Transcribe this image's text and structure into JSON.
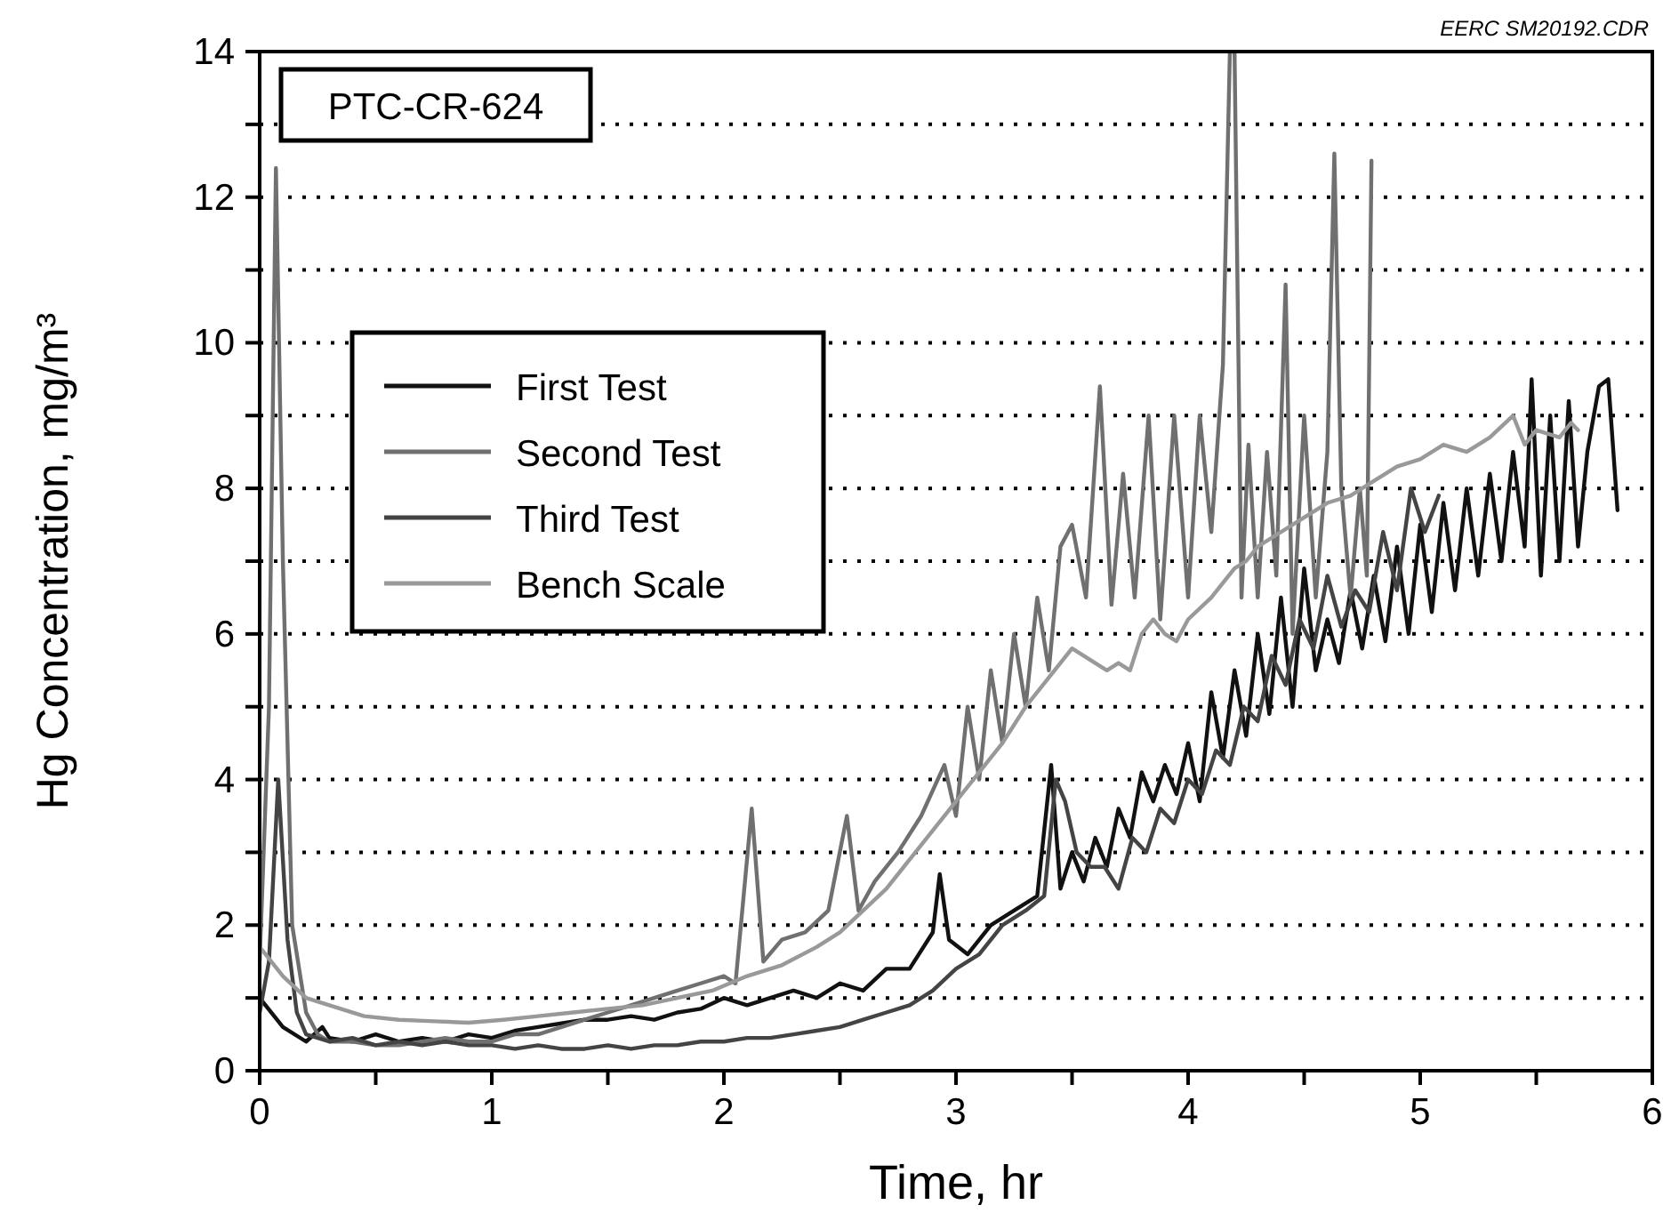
{
  "chart_data": {
    "type": "line",
    "xlabel": "Time, hr",
    "ylabel": "Hg Concentration, mg/m³",
    "annotations": [
      "PTC-CR-624",
      "EERC SM20192.CDR"
    ],
    "xlim": [
      0,
      6
    ],
    "ylim": [
      0,
      14
    ],
    "xticks": [
      0,
      {
        "value": 0.5,
        "label": null
      },
      1,
      {
        "value": 1.5,
        "label": null
      },
      2,
      {
        "value": 2.5,
        "label": null
      },
      3,
      {
        "value": 3.5,
        "label": null
      },
      4,
      {
        "value": 4.5,
        "label": null
      },
      5,
      {
        "value": 5.5,
        "label": null
      },
      6
    ],
    "yticks": [
      0,
      {
        "value": 1,
        "label": null
      },
      2,
      {
        "value": 3,
        "label": null
      },
      4,
      {
        "value": 5,
        "label": null
      },
      6,
      {
        "value": 7,
        "label": null
      },
      8,
      {
        "value": 9,
        "label": null
      },
      10,
      {
        "value": 11,
        "label": null
      },
      12,
      {
        "value": 13,
        "label": null
      },
      14
    ],
    "grid": "y",
    "legend": "left",
    "line_style": "solid",
    "marker": "none",
    "series": [
      {
        "name": "First Test",
        "color": "#111111",
        "x": [
          0,
          0.1,
          0.2,
          0.27,
          0.3,
          0.4,
          0.5,
          0.6,
          0.7,
          0.8,
          0.9,
          1.0,
          1.1,
          1.2,
          1.3,
          1.4,
          1.5,
          1.6,
          1.7,
          1.8,
          1.9,
          2.0,
          2.1,
          2.2,
          2.3,
          2.4,
          2.5,
          2.6,
          2.7,
          2.8,
          2.9,
          2.93,
          2.97,
          3.05,
          3.15,
          3.25,
          3.35,
          3.41,
          3.45,
          3.5,
          3.55,
          3.6,
          3.65,
          3.7,
          3.75,
          3.8,
          3.85,
          3.9,
          3.95,
          4.0,
          4.05,
          4.1,
          4.15,
          4.2,
          4.25,
          4.3,
          4.35,
          4.4,
          4.45,
          4.5,
          4.55,
          4.6,
          4.65,
          4.7,
          4.75,
          4.8,
          4.85,
          4.9,
          4.95,
          5.0,
          5.05,
          5.1,
          5.15,
          5.2,
          5.25,
          5.3,
          5.35,
          5.4,
          5.45,
          5.48,
          5.52,
          5.56,
          5.6,
          5.64,
          5.68,
          5.72,
          5.77,
          5.81,
          5.85
        ],
        "values": [
          1.0,
          0.6,
          0.4,
          0.6,
          0.45,
          0.4,
          0.5,
          0.4,
          0.45,
          0.4,
          0.5,
          0.45,
          0.55,
          0.6,
          0.65,
          0.7,
          0.7,
          0.75,
          0.7,
          0.8,
          0.85,
          1.0,
          0.9,
          1.0,
          1.1,
          1.0,
          1.2,
          1.1,
          1.4,
          1.4,
          1.9,
          2.7,
          1.8,
          1.6,
          2.0,
          2.2,
          2.4,
          4.2,
          2.5,
          3.0,
          2.6,
          3.2,
          2.8,
          3.6,
          3.2,
          4.1,
          3.7,
          4.2,
          3.8,
          4.5,
          3.7,
          5.2,
          4.3,
          5.5,
          4.6,
          6.0,
          4.9,
          6.5,
          5.0,
          6.9,
          5.5,
          6.2,
          5.6,
          6.6,
          5.8,
          6.8,
          5.9,
          7.2,
          6.0,
          7.5,
          6.3,
          7.8,
          6.6,
          8.0,
          6.8,
          8.2,
          7.0,
          8.5,
          7.2,
          9.5,
          6.8,
          9.0,
          7.0,
          9.2,
          7.2,
          8.5,
          9.4,
          9.5,
          7.7
        ]
      },
      {
        "name": "Second Test",
        "color": "#707070",
        "x": [
          0,
          0.04,
          0.07,
          0.1,
          0.14,
          0.2,
          0.25,
          0.3,
          0.4,
          0.5,
          0.6,
          0.7,
          0.8,
          0.9,
          1.0,
          1.1,
          1.2,
          1.3,
          1.4,
          1.5,
          1.6,
          1.7,
          1.8,
          1.9,
          2.0,
          2.05,
          2.12,
          2.17,
          2.25,
          2.35,
          2.45,
          2.53,
          2.58,
          2.65,
          2.75,
          2.85,
          2.95,
          3.0,
          3.05,
          3.1,
          3.15,
          3.2,
          3.25,
          3.3,
          3.35,
          3.4,
          3.45,
          3.5,
          3.56,
          3.62,
          3.67,
          3.72,
          3.77,
          3.83,
          3.88,
          3.94,
          4.0,
          4.05,
          4.1,
          4.15,
          4.18,
          4.2,
          4.23,
          4.26,
          4.3,
          4.34,
          4.38,
          4.42,
          4.45,
          4.5,
          4.55,
          4.6,
          4.63,
          4.66,
          4.7,
          4.74,
          4.77,
          4.79
        ],
        "values": [
          1.5,
          5,
          12.4,
          7,
          2,
          0.8,
          0.5,
          0.4,
          0.4,
          0.35,
          0.35,
          0.4,
          0.45,
          0.4,
          0.4,
          0.5,
          0.5,
          0.6,
          0.7,
          0.8,
          0.9,
          1.0,
          1.1,
          1.2,
          1.3,
          1.2,
          3.6,
          1.5,
          1.8,
          1.9,
          2.2,
          3.5,
          2.2,
          2.6,
          3.0,
          3.5,
          4.2,
          3.5,
          5.0,
          4.0,
          5.5,
          4.5,
          6.0,
          5.0,
          6.5,
          5.5,
          7.2,
          7.5,
          6.5,
          9.4,
          6.4,
          8.2,
          6.5,
          9.0,
          6.2,
          9.0,
          6.5,
          9.0,
          7.4,
          9.7,
          14,
          14,
          6.5,
          8.6,
          6.5,
          8.5,
          6.8,
          10.8,
          6.0,
          9.0,
          6.5,
          8.5,
          12.6,
          8.0,
          6.5,
          8.0,
          6.8,
          12.5
        ]
      },
      {
        "name": "Third Test",
        "color": "#444444",
        "x": [
          0,
          0.04,
          0.08,
          0.12,
          0.16,
          0.2,
          0.3,
          0.4,
          0.5,
          0.6,
          0.7,
          0.8,
          0.9,
          1.0,
          1.1,
          1.2,
          1.3,
          1.4,
          1.5,
          1.6,
          1.7,
          1.8,
          1.9,
          2.0,
          2.1,
          2.2,
          2.3,
          2.4,
          2.5,
          2.6,
          2.7,
          2.8,
          2.9,
          3.0,
          3.1,
          3.2,
          3.3,
          3.38,
          3.43,
          3.47,
          3.52,
          3.58,
          3.64,
          3.7,
          3.76,
          3.82,
          3.88,
          3.94,
          4.0,
          4.06,
          4.12,
          4.18,
          4.24,
          4.3,
          4.36,
          4.42,
          4.48,
          4.54,
          4.6,
          4.66,
          4.72,
          4.78,
          4.84,
          4.9,
          4.96,
          5.02,
          5.08
        ],
        "values": [
          0.8,
          1.5,
          4.0,
          1.8,
          0.8,
          0.5,
          0.4,
          0.45,
          0.35,
          0.4,
          0.35,
          0.4,
          0.35,
          0.35,
          0.3,
          0.35,
          0.3,
          0.3,
          0.35,
          0.3,
          0.35,
          0.35,
          0.4,
          0.4,
          0.45,
          0.45,
          0.5,
          0.55,
          0.6,
          0.7,
          0.8,
          0.9,
          1.1,
          1.4,
          1.6,
          2.0,
          2.2,
          2.4,
          4.0,
          3.7,
          3.0,
          2.8,
          2.8,
          2.5,
          3.2,
          3.0,
          3.6,
          3.4,
          4.0,
          3.8,
          4.4,
          4.2,
          5.0,
          4.8,
          5.7,
          5.3,
          6.2,
          5.8,
          6.8,
          6.1,
          6.6,
          6.3,
          7.4,
          6.6,
          8.0,
          7.4,
          7.9
        ]
      },
      {
        "name": "Bench Scale",
        "color": "#999999",
        "x": [
          0,
          0.1,
          0.2,
          0.3,
          0.45,
          0.6,
          0.75,
          0.9,
          1.05,
          1.2,
          1.35,
          1.5,
          1.65,
          1.8,
          1.95,
          2.1,
          2.25,
          2.4,
          2.5,
          2.6,
          2.7,
          2.8,
          2.9,
          3.0,
          3.1,
          3.2,
          3.3,
          3.4,
          3.5,
          3.6,
          3.65,
          3.7,
          3.75,
          3.8,
          3.85,
          3.9,
          3.95,
          4.0,
          4.1,
          4.2,
          4.25,
          4.3,
          4.4,
          4.5,
          4.6,
          4.7,
          4.8,
          4.9,
          5.0,
          5.1,
          5.2,
          5.3,
          5.4,
          5.45,
          5.5,
          5.6,
          5.65,
          5.68
        ],
        "values": [
          1.7,
          1.3,
          1.0,
          0.9,
          0.75,
          0.7,
          0.68,
          0.66,
          0.7,
          0.75,
          0.8,
          0.85,
          0.9,
          1.0,
          1.1,
          1.3,
          1.45,
          1.7,
          1.9,
          2.2,
          2.5,
          2.9,
          3.3,
          3.7,
          4.1,
          4.5,
          5.0,
          5.4,
          5.8,
          5.6,
          5.5,
          5.6,
          5.5,
          6.0,
          6.2,
          6.0,
          5.9,
          6.2,
          6.5,
          6.9,
          7.0,
          7.2,
          7.4,
          7.6,
          7.8,
          7.9,
          8.1,
          8.3,
          8.4,
          8.6,
          8.5,
          8.7,
          9.0,
          8.6,
          8.8,
          8.7,
          8.9,
          8.8
        ]
      }
    ]
  }
}
